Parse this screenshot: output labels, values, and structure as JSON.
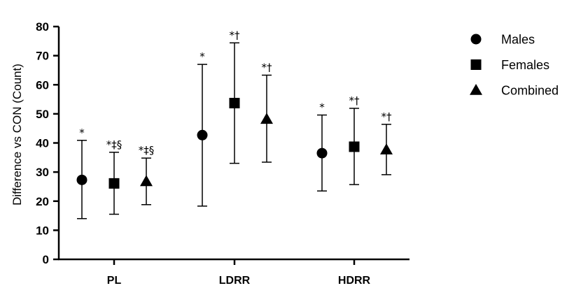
{
  "chart_data": {
    "type": "scatter",
    "title": "",
    "xlabel": "",
    "ylabel": "Difference vs CON (Count)",
    "ylim": [
      0,
      80
    ],
    "yticks": [
      0,
      10,
      20,
      30,
      40,
      50,
      60,
      70,
      80
    ],
    "categories": [
      "PL",
      "LDRR",
      "HDRR"
    ],
    "series": [
      {
        "name": "Males",
        "marker": "circle",
        "values": [
          27.3,
          42.7,
          36.5
        ],
        "error_low": [
          14.0,
          18.3,
          23.5
        ],
        "error_high": [
          40.9,
          67.0,
          49.6
        ],
        "annotations": [
          "*",
          "*",
          "*"
        ]
      },
      {
        "name": "Females",
        "marker": "square",
        "values": [
          26.1,
          53.7,
          38.7
        ],
        "error_low": [
          15.5,
          33.0,
          25.7
        ],
        "error_high": [
          36.8,
          74.4,
          51.9
        ],
        "annotations": [
          "*‡§",
          "*†",
          "*†"
        ]
      },
      {
        "name": "Combined",
        "marker": "triangle",
        "values": [
          26.8,
          48.2,
          37.7
        ],
        "error_low": [
          18.8,
          33.4,
          29.1
        ],
        "error_high": [
          34.8,
          63.3,
          46.4
        ],
        "annotations": [
          "*‡§",
          "*†",
          "*†"
        ]
      }
    ],
    "legend_position": "top-right",
    "grid": false,
    "colors": {
      "marker": "#000000",
      "axis": "#000000",
      "background": "#ffffff"
    }
  }
}
